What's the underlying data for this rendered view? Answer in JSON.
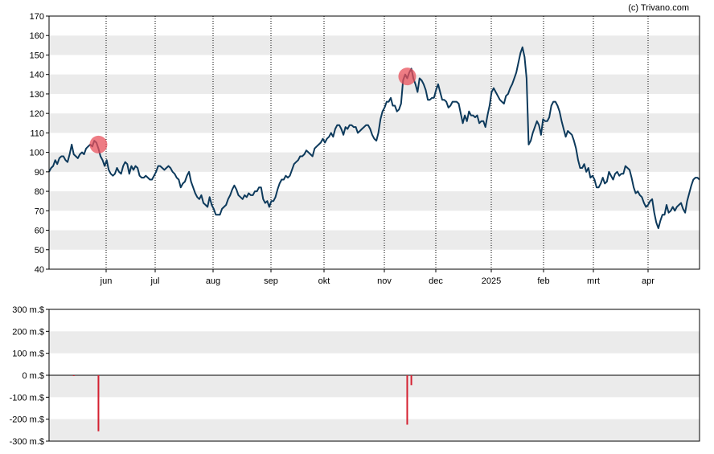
{
  "credit": "(c) Trivano.com",
  "colors": {
    "price_line": "#0d3a5c",
    "band": "#ebebeb",
    "marker": "#e8505b",
    "volume_bar": "#d42030",
    "axis": "#000000",
    "gridline": "#000000"
  },
  "chart_data": [
    {
      "type": "line",
      "title": "",
      "ylim": [
        40,
        170
      ],
      "y_ticks": [
        40,
        50,
        60,
        70,
        80,
        90,
        100,
        110,
        120,
        130,
        140,
        150,
        160,
        170
      ],
      "x_tick_labels": [
        "jun",
        "jul",
        "aug",
        "sep",
        "okt",
        "nov",
        "dec",
        "2025",
        "feb",
        "mrt",
        "apr"
      ],
      "vertical_gridlines": "dotted at each month",
      "background": "alternating grey bands",
      "series": [
        {
          "values": [
            90,
            92,
            93,
            96,
            94,
            97,
            98,
            98,
            96,
            95,
            99,
            104,
            99,
            98,
            97,
            99,
            100,
            99,
            102,
            103,
            104,
            103,
            106,
            105,
            102,
            98,
            96,
            93,
            96,
            91,
            89,
            88,
            89,
            92,
            90,
            89,
            93,
            95,
            94,
            89,
            93,
            91,
            93,
            92,
            88,
            87,
            87,
            88,
            87,
            86,
            86,
            88,
            90,
            93,
            93,
            92,
            91,
            92,
            93,
            92,
            90,
            89,
            87,
            86,
            82,
            84,
            85,
            88,
            90,
            85,
            82,
            79,
            77,
            76,
            78,
            74,
            73,
            72,
            77,
            73,
            71,
            68,
            68,
            68,
            71,
            72,
            73,
            76,
            78,
            81,
            83,
            81,
            78,
            77,
            76,
            78,
            77,
            79,
            78,
            78,
            80,
            80,
            82,
            82,
            76,
            74,
            75,
            72,
            75,
            75,
            77,
            81,
            84,
            86,
            86,
            88,
            87,
            88,
            91,
            94,
            95,
            96,
            98,
            98,
            99,
            101,
            100,
            99,
            98,
            102,
            103,
            104,
            105,
            107,
            105,
            107,
            108,
            110,
            108,
            112,
            114,
            114,
            112,
            109,
            113,
            112,
            114,
            114,
            113,
            113,
            110,
            111,
            112,
            113,
            114,
            114,
            112,
            109,
            107,
            106,
            110,
            117,
            121,
            123,
            126,
            126,
            128,
            124,
            124,
            121,
            122,
            125,
            137,
            140,
            138,
            141,
            143,
            138,
            135,
            131,
            138,
            137,
            135,
            132,
            127,
            127,
            128,
            128,
            132,
            135,
            131,
            127,
            127,
            126,
            123,
            124,
            126,
            126,
            126,
            125,
            120,
            115,
            119,
            116,
            121,
            119,
            119,
            118,
            119,
            115,
            116,
            116,
            113,
            119,
            124,
            131,
            133,
            131,
            129,
            127,
            126,
            125,
            129,
            130,
            133,
            135,
            138,
            141,
            146,
            151,
            154,
            149,
            138,
            104,
            106,
            110,
            113,
            116,
            114,
            109,
            117,
            116,
            116,
            118,
            124,
            126,
            126,
            124,
            121,
            116,
            112,
            108,
            111,
            110,
            109,
            106,
            102,
            96,
            92,
            92,
            94,
            90,
            92,
            87,
            88,
            86,
            82,
            82,
            84,
            87,
            84,
            85,
            90,
            88,
            86,
            89,
            90,
            88,
            89,
            89,
            93,
            92,
            91,
            87,
            82,
            79,
            80,
            78,
            77,
            74,
            72,
            73,
            75,
            76,
            69,
            64,
            61,
            65,
            68,
            68,
            73,
            69,
            70,
            72,
            70,
            72,
            73,
            74,
            71,
            69,
            75,
            79,
            83,
            86,
            87,
            87,
            86
          ]
        }
      ],
      "markers": [
        {
          "x_index": 24,
          "y": 104
        },
        {
          "x_index": 174,
          "y": 139
        }
      ]
    },
    {
      "type": "bar",
      "title": "",
      "ylim": [
        -300,
        300
      ],
      "y_ticks": [
        -300,
        -200,
        -100,
        0,
        100,
        200,
        300
      ],
      "y_tick_labels": [
        "-300 m.$",
        "-200 m.$",
        "-100 m.$",
        "0 m.$",
        "100 m.$",
        "200 m.$",
        "300 m.$"
      ],
      "series": [
        {
          "x_index": [
            12,
            24,
            174,
            176
          ],
          "values": [
            -3,
            -255,
            -225,
            -45
          ]
        }
      ]
    }
  ]
}
